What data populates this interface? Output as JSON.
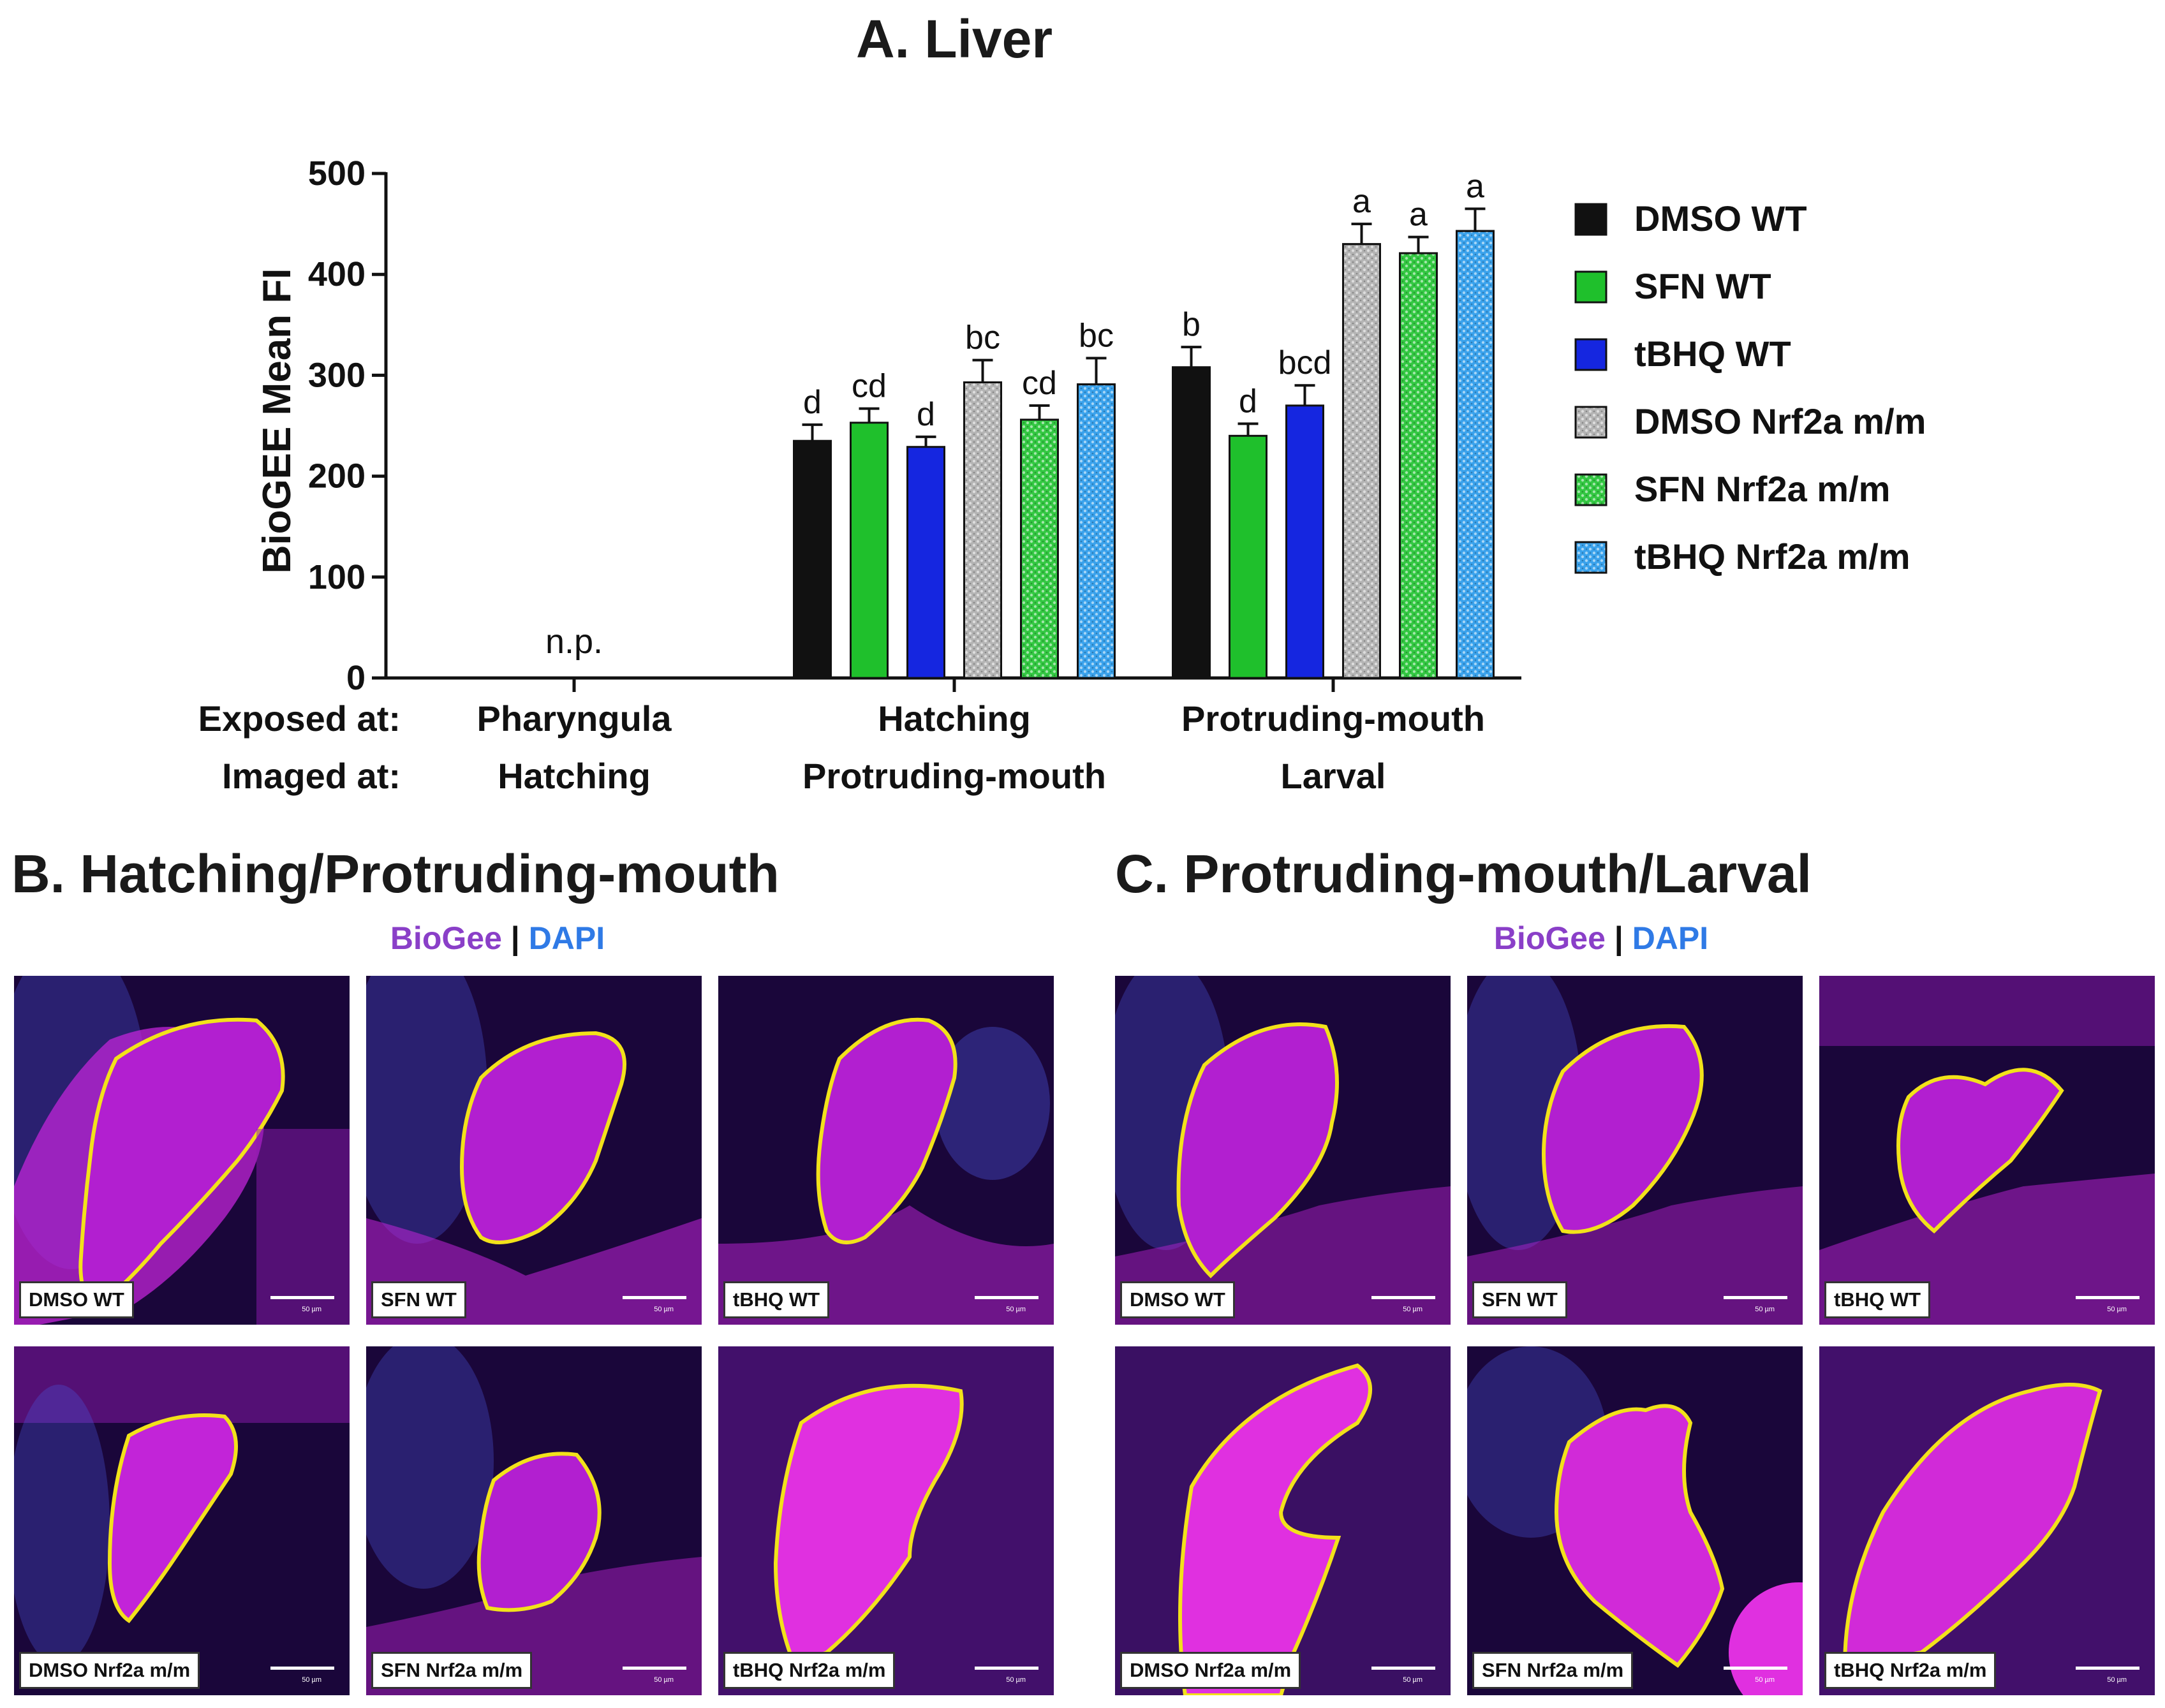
{
  "chart_data": {
    "type": "bar",
    "title": "A. Liver",
    "ylabel": "BioGEE Mean FI",
    "ylim": [
      0,
      500
    ],
    "yticks": [
      "0",
      "100",
      "200",
      "300",
      "400",
      "500"
    ],
    "row_labels": {
      "exposed": "Exposed at:",
      "imaged": "Imaged at:"
    },
    "groups": [
      {
        "exposed": "Pharyngula",
        "imaged": "Hatching",
        "note": "n.p."
      },
      {
        "exposed": "Hatching",
        "imaged": "Protruding-mouth"
      },
      {
        "exposed": "Protruding-mouth",
        "imaged": "Larval"
      }
    ],
    "series": [
      {
        "name": "DMSO WT",
        "color": "#111111",
        "pattern": "solid",
        "values": [
          null,
          235,
          308
        ],
        "errors": [
          null,
          16,
          20
        ],
        "letters": [
          "",
          "d",
          "b"
        ]
      },
      {
        "name": "SFN WT",
        "color": "#1fc02c",
        "pattern": "solid",
        "values": [
          null,
          253,
          240
        ],
        "errors": [
          null,
          14,
          12
        ],
        "letters": [
          "",
          "cd",
          "d"
        ]
      },
      {
        "name": "tBHQ WT",
        "color": "#1526e0",
        "pattern": "solid",
        "values": [
          null,
          229,
          270
        ],
        "errors": [
          null,
          10,
          20
        ],
        "letters": [
          "",
          "d",
          "bcd"
        ]
      },
      {
        "name": "DMSO Nrf2a m/m",
        "color": "#b4b4b4",
        "pattern": "dots",
        "values": [
          null,
          293,
          430
        ],
        "errors": [
          null,
          22,
          20
        ],
        "letters": [
          "",
          "bc",
          "a"
        ]
      },
      {
        "name": "SFN Nrf2a m/m",
        "color": "#33c842",
        "pattern": "dots",
        "values": [
          null,
          256,
          421
        ],
        "errors": [
          null,
          14,
          16
        ],
        "letters": [
          "",
          "cd",
          "a"
        ]
      },
      {
        "name": "tBHQ Nrf2a m/m",
        "color": "#3aa2ec",
        "pattern": "dots",
        "values": [
          null,
          291,
          443
        ],
        "errors": [
          null,
          26,
          22
        ],
        "letters": [
          "",
          "bc",
          "a"
        ]
      }
    ]
  },
  "panels": {
    "b_title": "B. Hatching/Protruding-mouth",
    "c_title": "C. Protruding-mouth/Larval",
    "stain": {
      "biogee": "BioGee",
      "separator": "|",
      "dapi": "DAPI"
    },
    "labels": [
      "DMSO WT",
      "SFN WT",
      "tBHQ WT",
      "DMSO Nrf2a m/m",
      "SFN Nrf2a m/m",
      "tBHQ Nrf2a m/m"
    ],
    "scale_label": "50 µm",
    "colors": {
      "tissue": "#c224d8",
      "background": "#1a063a",
      "outline": "#f2e21a",
      "dapi": "#4a52d6"
    }
  }
}
